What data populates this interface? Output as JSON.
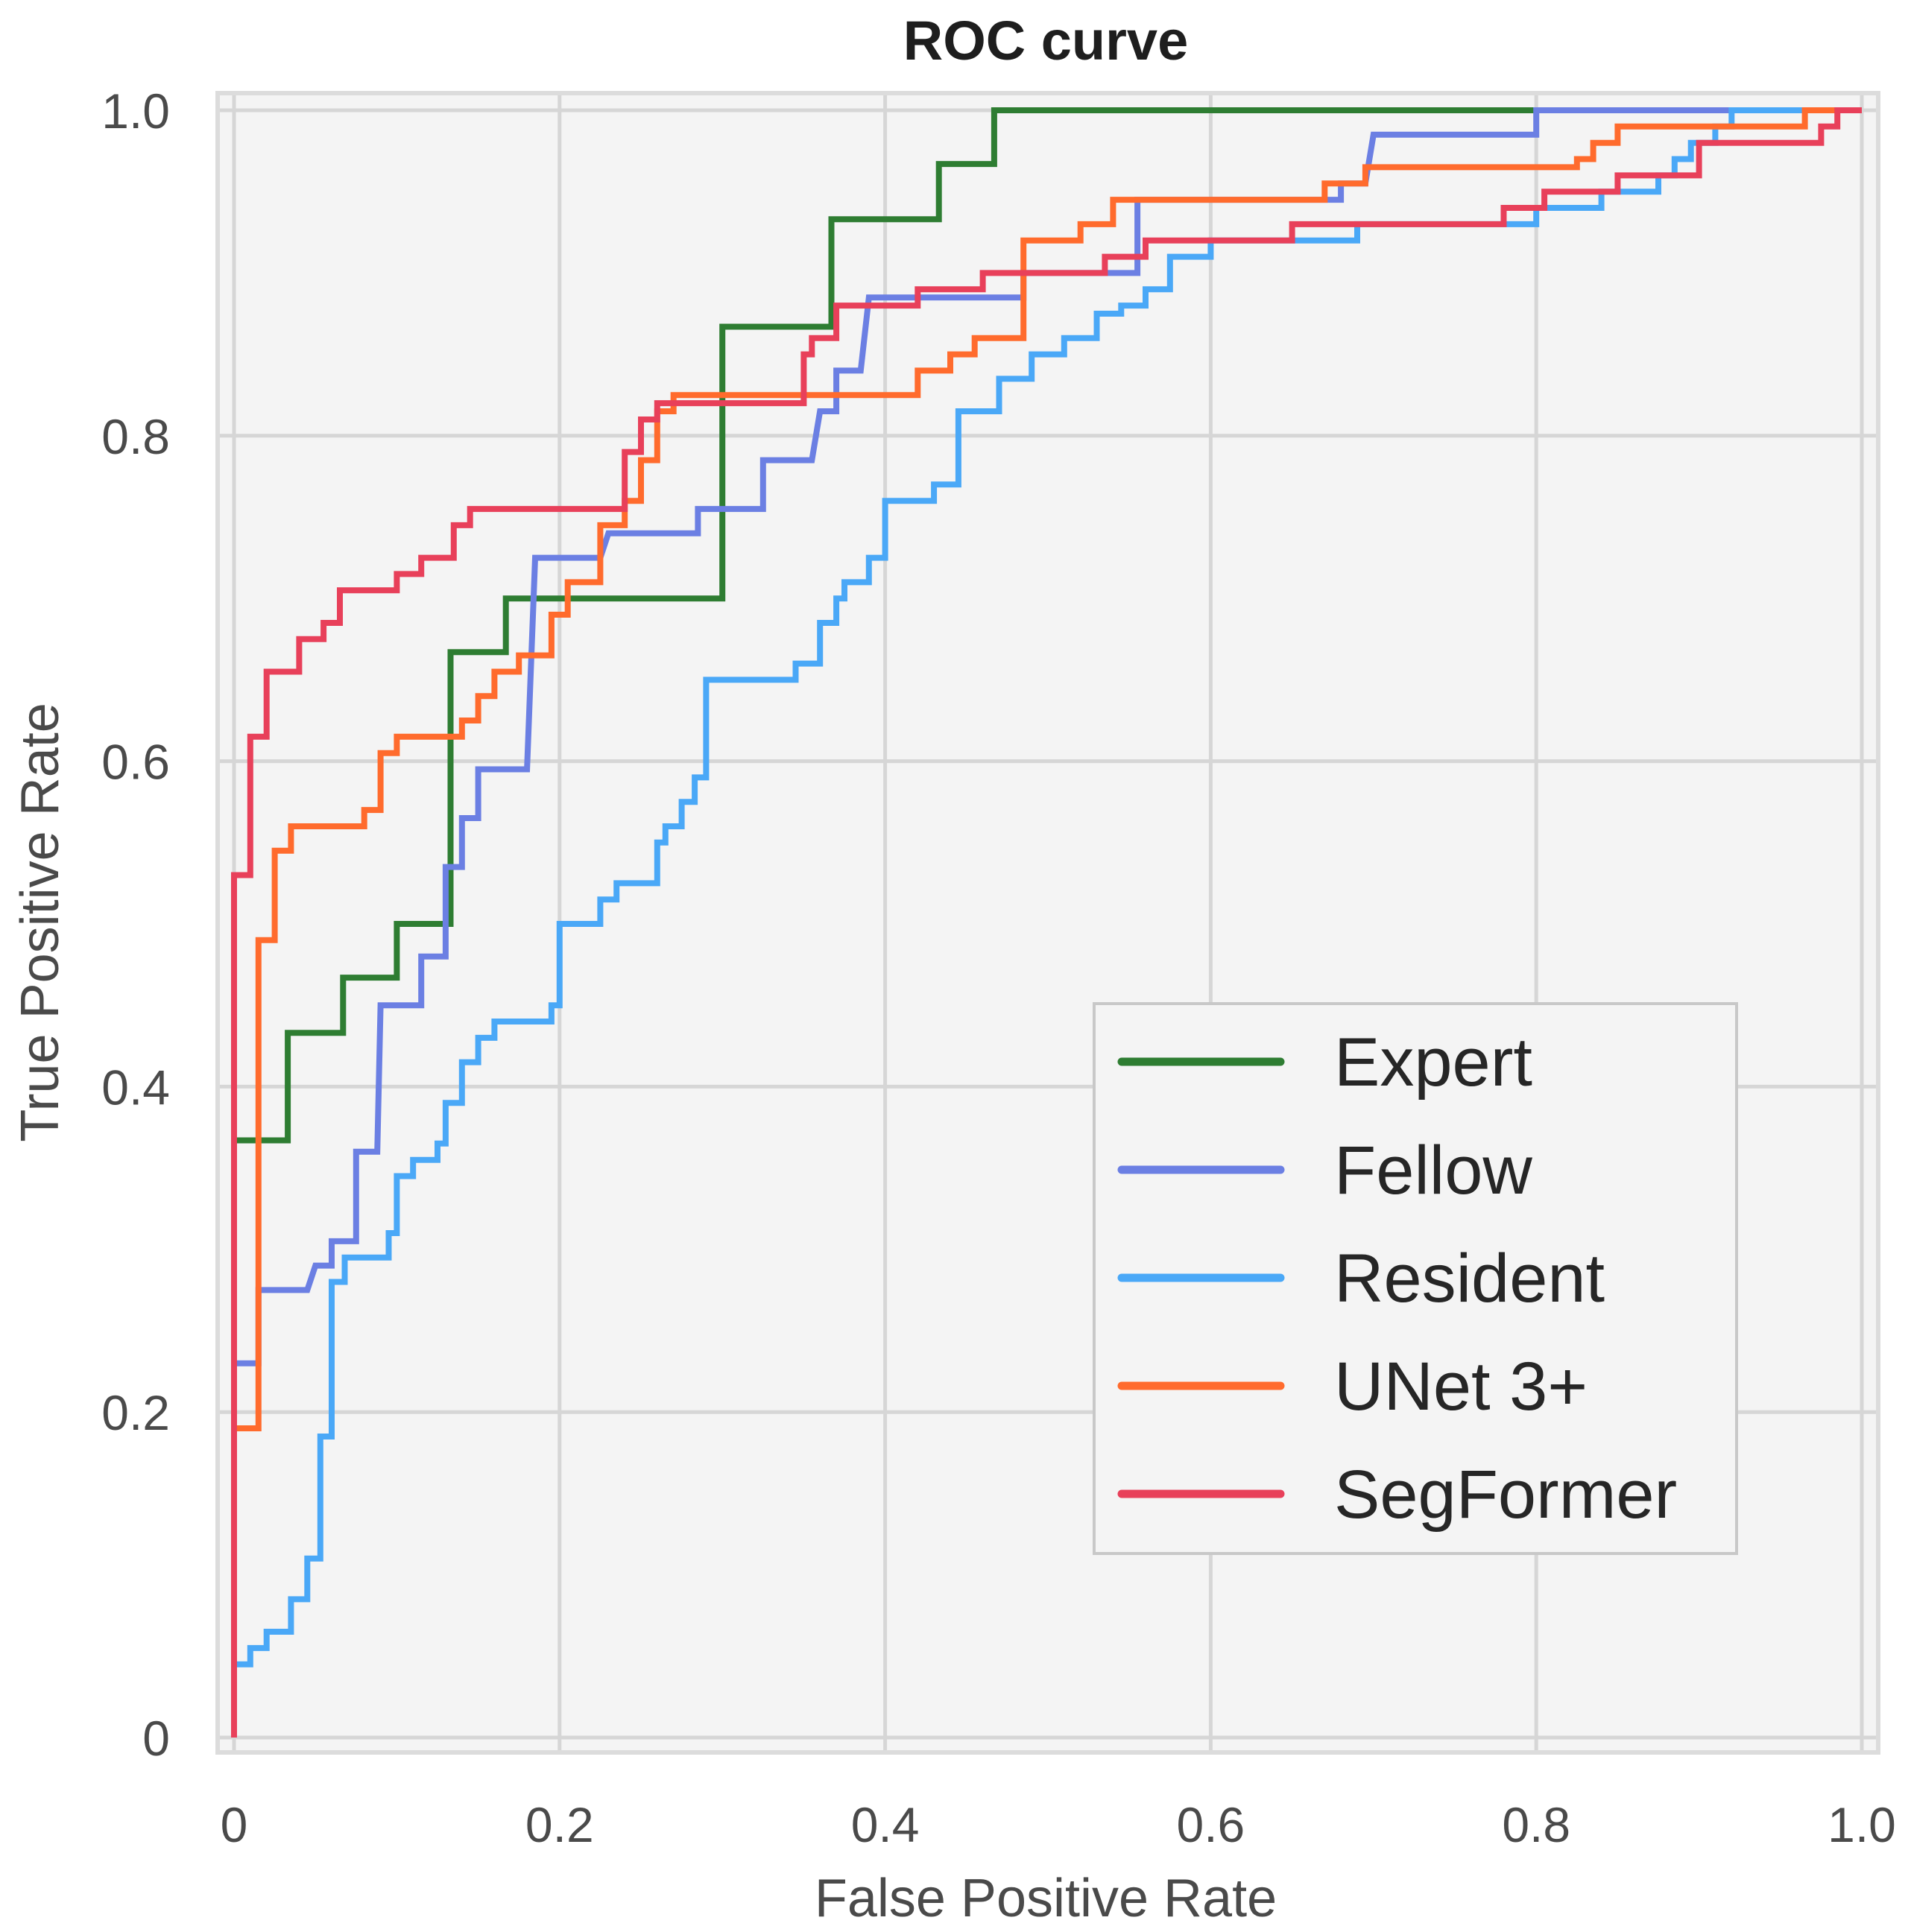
{
  "chart_data": {
    "type": "line",
    "title": "ROC curve",
    "xlabel": "False Positive Rate",
    "ylabel": "True Positive Rate",
    "xlim": [
      0,
      1
    ],
    "ylim": [
      0,
      1
    ],
    "x_ticks": [
      {
        "value": 0,
        "label": "0"
      },
      {
        "value": 0.2,
        "label": "0.2"
      },
      {
        "value": 0.4,
        "label": "0.4"
      },
      {
        "value": 0.6,
        "label": "0.6"
      },
      {
        "value": 0.8,
        "label": "0.8"
      },
      {
        "value": 1.0,
        "label": "1.0"
      }
    ],
    "y_ticks": [
      {
        "value": 0,
        "label": "0"
      },
      {
        "value": 0.2,
        "label": "0.2"
      },
      {
        "value": 0.4,
        "label": "0.4"
      },
      {
        "value": 0.6,
        "label": "0.6"
      },
      {
        "value": 0.8,
        "label": "0.8"
      },
      {
        "value": 1.0,
        "label": "1.0"
      }
    ],
    "grid": true,
    "legend_position": "lower-right",
    "series": [
      {
        "name": "Expert",
        "color": "#2e7d32",
        "points": [
          [
            0,
            0
          ],
          [
            0,
            0.367
          ],
          [
            0.033,
            0.367
          ],
          [
            0.033,
            0.433
          ],
          [
            0.067,
            0.433
          ],
          [
            0.067,
            0.467
          ],
          [
            0.1,
            0.467
          ],
          [
            0.1,
            0.5
          ],
          [
            0.133,
            0.5
          ],
          [
            0.133,
            0.667
          ],
          [
            0.167,
            0.667
          ],
          [
            0.167,
            0.7
          ],
          [
            0.3,
            0.7
          ],
          [
            0.3,
            0.867
          ],
          [
            0.367,
            0.867
          ],
          [
            0.367,
            0.933
          ],
          [
            0.433,
            0.933
          ],
          [
            0.433,
            0.967
          ],
          [
            0.467,
            0.967
          ],
          [
            0.467,
            1.0
          ],
          [
            1.0,
            1.0
          ]
        ]
      },
      {
        "name": "Fellow",
        "color": "#6b7fe3",
        "points": [
          [
            0,
            0
          ],
          [
            0,
            0.23
          ],
          [
            0.015,
            0.23
          ],
          [
            0.015,
            0.275
          ],
          [
            0.045,
            0.275
          ],
          [
            0.05,
            0.29
          ],
          [
            0.06,
            0.29
          ],
          [
            0.06,
            0.305
          ],
          [
            0.075,
            0.305
          ],
          [
            0.075,
            0.36
          ],
          [
            0.088,
            0.36
          ],
          [
            0.09,
            0.45
          ],
          [
            0.115,
            0.45
          ],
          [
            0.115,
            0.48
          ],
          [
            0.13,
            0.48
          ],
          [
            0.13,
            0.535
          ],
          [
            0.14,
            0.535
          ],
          [
            0.14,
            0.565
          ],
          [
            0.15,
            0.565
          ],
          [
            0.15,
            0.595
          ],
          [
            0.18,
            0.595
          ],
          [
            0.185,
            0.725
          ],
          [
            0.225,
            0.725
          ],
          [
            0.23,
            0.74
          ],
          [
            0.285,
            0.74
          ],
          [
            0.285,
            0.755
          ],
          [
            0.325,
            0.755
          ],
          [
            0.325,
            0.785
          ],
          [
            0.355,
            0.785
          ],
          [
            0.36,
            0.815
          ],
          [
            0.37,
            0.815
          ],
          [
            0.37,
            0.84
          ],
          [
            0.385,
            0.84
          ],
          [
            0.39,
            0.885
          ],
          [
            0.485,
            0.885
          ],
          [
            0.485,
            0.9
          ],
          [
            0.555,
            0.9
          ],
          [
            0.555,
            0.945
          ],
          [
            0.68,
            0.945
          ],
          [
            0.68,
            0.955
          ],
          [
            0.695,
            0.955
          ],
          [
            0.7,
            0.985
          ],
          [
            0.8,
            0.985
          ],
          [
            0.8,
            1.0
          ],
          [
            1.0,
            1.0
          ]
        ]
      },
      {
        "name": "Resident",
        "color": "#4aa8f7",
        "points": [
          [
            0,
            0
          ],
          [
            0,
            0.045
          ],
          [
            0.01,
            0.045
          ],
          [
            0.01,
            0.055
          ],
          [
            0.02,
            0.055
          ],
          [
            0.02,
            0.065
          ],
          [
            0.035,
            0.065
          ],
          [
            0.035,
            0.085
          ],
          [
            0.045,
            0.085
          ],
          [
            0.045,
            0.11
          ],
          [
            0.053,
            0.11
          ],
          [
            0.053,
            0.185
          ],
          [
            0.06,
            0.185
          ],
          [
            0.06,
            0.28
          ],
          [
            0.068,
            0.28
          ],
          [
            0.068,
            0.295
          ],
          [
            0.095,
            0.295
          ],
          [
            0.095,
            0.31
          ],
          [
            0.1,
            0.31
          ],
          [
            0.1,
            0.345
          ],
          [
            0.11,
            0.345
          ],
          [
            0.11,
            0.355
          ],
          [
            0.125,
            0.355
          ],
          [
            0.125,
            0.365
          ],
          [
            0.13,
            0.365
          ],
          [
            0.13,
            0.39
          ],
          [
            0.14,
            0.39
          ],
          [
            0.14,
            0.415
          ],
          [
            0.15,
            0.415
          ],
          [
            0.15,
            0.43
          ],
          [
            0.16,
            0.43
          ],
          [
            0.16,
            0.44
          ],
          [
            0.195,
            0.44
          ],
          [
            0.195,
            0.45
          ],
          [
            0.2,
            0.45
          ],
          [
            0.2,
            0.5
          ],
          [
            0.225,
            0.5
          ],
          [
            0.225,
            0.515
          ],
          [
            0.235,
            0.515
          ],
          [
            0.235,
            0.525
          ],
          [
            0.26,
            0.525
          ],
          [
            0.26,
            0.55
          ],
          [
            0.265,
            0.55
          ],
          [
            0.265,
            0.56
          ],
          [
            0.275,
            0.56
          ],
          [
            0.275,
            0.575
          ],
          [
            0.283,
            0.575
          ],
          [
            0.283,
            0.59
          ],
          [
            0.29,
            0.59
          ],
          [
            0.29,
            0.65
          ],
          [
            0.345,
            0.65
          ],
          [
            0.345,
            0.66
          ],
          [
            0.36,
            0.66
          ],
          [
            0.36,
            0.685
          ],
          [
            0.37,
            0.685
          ],
          [
            0.37,
            0.7
          ],
          [
            0.375,
            0.7
          ],
          [
            0.375,
            0.71
          ],
          [
            0.39,
            0.71
          ],
          [
            0.39,
            0.725
          ],
          [
            0.4,
            0.725
          ],
          [
            0.4,
            0.76
          ],
          [
            0.43,
            0.76
          ],
          [
            0.43,
            0.77
          ],
          [
            0.445,
            0.77
          ],
          [
            0.445,
            0.815
          ],
          [
            0.47,
            0.815
          ],
          [
            0.47,
            0.835
          ],
          [
            0.49,
            0.835
          ],
          [
            0.49,
            0.85
          ],
          [
            0.51,
            0.85
          ],
          [
            0.51,
            0.86
          ],
          [
            0.53,
            0.86
          ],
          [
            0.53,
            0.875
          ],
          [
            0.545,
            0.875
          ],
          [
            0.545,
            0.88
          ],
          [
            0.56,
            0.88
          ],
          [
            0.56,
            0.89
          ],
          [
            0.575,
            0.89
          ],
          [
            0.575,
            0.91
          ],
          [
            0.6,
            0.91
          ],
          [
            0.6,
            0.92
          ],
          [
            0.69,
            0.92
          ],
          [
            0.69,
            0.93
          ],
          [
            0.8,
            0.93
          ],
          [
            0.8,
            0.94
          ],
          [
            0.84,
            0.94
          ],
          [
            0.84,
            0.95
          ],
          [
            0.875,
            0.95
          ],
          [
            0.875,
            0.96
          ],
          [
            0.885,
            0.96
          ],
          [
            0.885,
            0.97
          ],
          [
            0.895,
            0.97
          ],
          [
            0.895,
            0.98
          ],
          [
            0.91,
            0.98
          ],
          [
            0.91,
            0.99
          ],
          [
            0.92,
            0.99
          ],
          [
            0.92,
            1.0
          ],
          [
            1.0,
            1.0
          ]
        ]
      },
      {
        "name": "UNet 3+",
        "color": "#ff6b2d",
        "points": [
          [
            0,
            0
          ],
          [
            0,
            0.19
          ],
          [
            0.015,
            0.19
          ],
          [
            0.015,
            0.49
          ],
          [
            0.025,
            0.49
          ],
          [
            0.025,
            0.545
          ],
          [
            0.035,
            0.545
          ],
          [
            0.035,
            0.56
          ],
          [
            0.08,
            0.56
          ],
          [
            0.08,
            0.57
          ],
          [
            0.09,
            0.57
          ],
          [
            0.09,
            0.605
          ],
          [
            0.1,
            0.605
          ],
          [
            0.1,
            0.615
          ],
          [
            0.14,
            0.615
          ],
          [
            0.14,
            0.625
          ],
          [
            0.15,
            0.625
          ],
          [
            0.15,
            0.64
          ],
          [
            0.16,
            0.64
          ],
          [
            0.16,
            0.655
          ],
          [
            0.175,
            0.655
          ],
          [
            0.175,
            0.665
          ],
          [
            0.195,
            0.665
          ],
          [
            0.195,
            0.69
          ],
          [
            0.205,
            0.69
          ],
          [
            0.205,
            0.71
          ],
          [
            0.225,
            0.71
          ],
          [
            0.225,
            0.745
          ],
          [
            0.24,
            0.745
          ],
          [
            0.24,
            0.76
          ],
          [
            0.25,
            0.76
          ],
          [
            0.25,
            0.785
          ],
          [
            0.26,
            0.785
          ],
          [
            0.26,
            0.815
          ],
          [
            0.27,
            0.815
          ],
          [
            0.27,
            0.825
          ],
          [
            0.42,
            0.825
          ],
          [
            0.42,
            0.84
          ],
          [
            0.44,
            0.84
          ],
          [
            0.44,
            0.85
          ],
          [
            0.455,
            0.85
          ],
          [
            0.455,
            0.86
          ],
          [
            0.485,
            0.86
          ],
          [
            0.485,
            0.92
          ],
          [
            0.52,
            0.92
          ],
          [
            0.52,
            0.93
          ],
          [
            0.54,
            0.93
          ],
          [
            0.54,
            0.945
          ],
          [
            0.67,
            0.945
          ],
          [
            0.67,
            0.955
          ],
          [
            0.695,
            0.955
          ],
          [
            0.695,
            0.965
          ],
          [
            0.825,
            0.965
          ],
          [
            0.825,
            0.97
          ],
          [
            0.835,
            0.97
          ],
          [
            0.835,
            0.98
          ],
          [
            0.85,
            0.98
          ],
          [
            0.85,
            0.99
          ],
          [
            0.965,
            0.99
          ],
          [
            0.965,
            1.0
          ],
          [
            1.0,
            1.0
          ]
        ]
      },
      {
        "name": "SegFormer",
        "color": "#e8405a",
        "points": [
          [
            0,
            0
          ],
          [
            0,
            0.53
          ],
          [
            0.01,
            0.53
          ],
          [
            0.01,
            0.615
          ],
          [
            0.02,
            0.615
          ],
          [
            0.02,
            0.655
          ],
          [
            0.04,
            0.655
          ],
          [
            0.04,
            0.675
          ],
          [
            0.055,
            0.675
          ],
          [
            0.055,
            0.685
          ],
          [
            0.065,
            0.685
          ],
          [
            0.065,
            0.705
          ],
          [
            0.1,
            0.705
          ],
          [
            0.1,
            0.715
          ],
          [
            0.115,
            0.715
          ],
          [
            0.115,
            0.725
          ],
          [
            0.135,
            0.725
          ],
          [
            0.135,
            0.745
          ],
          [
            0.145,
            0.745
          ],
          [
            0.145,
            0.755
          ],
          [
            0.24,
            0.755
          ],
          [
            0.24,
            0.79
          ],
          [
            0.25,
            0.79
          ],
          [
            0.25,
            0.81
          ],
          [
            0.26,
            0.81
          ],
          [
            0.26,
            0.82
          ],
          [
            0.35,
            0.82
          ],
          [
            0.35,
            0.85
          ],
          [
            0.355,
            0.85
          ],
          [
            0.355,
            0.86
          ],
          [
            0.37,
            0.86
          ],
          [
            0.37,
            0.88
          ],
          [
            0.42,
            0.88
          ],
          [
            0.42,
            0.89
          ],
          [
            0.46,
            0.89
          ],
          [
            0.46,
            0.9
          ],
          [
            0.535,
            0.9
          ],
          [
            0.535,
            0.91
          ],
          [
            0.56,
            0.91
          ],
          [
            0.56,
            0.92
          ],
          [
            0.65,
            0.92
          ],
          [
            0.65,
            0.93
          ],
          [
            0.78,
            0.93
          ],
          [
            0.78,
            0.94
          ],
          [
            0.805,
            0.94
          ],
          [
            0.805,
            0.95
          ],
          [
            0.85,
            0.95
          ],
          [
            0.85,
            0.96
          ],
          [
            0.9,
            0.96
          ],
          [
            0.9,
            0.98
          ],
          [
            0.975,
            0.98
          ],
          [
            0.975,
            0.99
          ],
          [
            0.985,
            0.99
          ],
          [
            0.985,
            1.0
          ],
          [
            1.0,
            1.0
          ]
        ]
      }
    ]
  }
}
